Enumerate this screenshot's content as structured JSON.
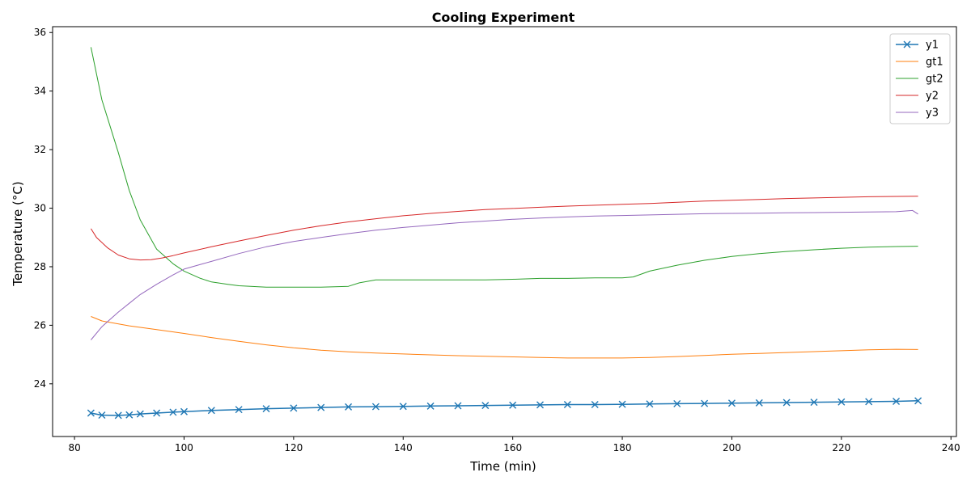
{
  "chart_data": {
    "type": "line",
    "title": "Cooling Experiment",
    "xlabel": "Time (min)",
    "ylabel": "Temperature (°C)",
    "xlim": [
      76,
      241
    ],
    "ylim": [
      22.2,
      36.2
    ],
    "xticks": [
      80,
      100,
      120,
      140,
      160,
      180,
      200,
      220,
      240
    ],
    "yticks": [
      24,
      26,
      28,
      30,
      32,
      34,
      36
    ],
    "grid": false,
    "legend_position": "top-right",
    "series": [
      {
        "name": "y1",
        "color": "#1f77b4",
        "marker": "x",
        "x": [
          83,
          85,
          88,
          90,
          92,
          95,
          98,
          100,
          105,
          110,
          115,
          120,
          125,
          130,
          135,
          140,
          145,
          150,
          155,
          160,
          165,
          170,
          175,
          180,
          185,
          190,
          195,
          200,
          205,
          210,
          215,
          220,
          225,
          230,
          234
        ],
        "y": [
          23.0,
          22.93,
          22.92,
          22.94,
          22.97,
          23.0,
          23.03,
          23.05,
          23.09,
          23.12,
          23.15,
          23.17,
          23.19,
          23.21,
          23.22,
          23.23,
          23.24,
          23.25,
          23.26,
          23.27,
          23.28,
          23.29,
          23.29,
          23.3,
          23.31,
          23.32,
          23.33,
          23.34,
          23.35,
          23.36,
          23.37,
          23.38,
          23.39,
          23.4,
          23.42
        ]
      },
      {
        "name": "gt1",
        "color": "#ff7f0e",
        "x": [
          83,
          85,
          90,
          95,
          100,
          105,
          110,
          115,
          120,
          125,
          130,
          135,
          140,
          145,
          150,
          155,
          160,
          165,
          170,
          175,
          180,
          185,
          190,
          195,
          200,
          205,
          210,
          215,
          220,
          225,
          230,
          234
        ],
        "y": [
          26.3,
          26.15,
          25.98,
          25.85,
          25.72,
          25.58,
          25.45,
          25.33,
          25.23,
          25.15,
          25.09,
          25.05,
          25.02,
          24.99,
          24.96,
          24.94,
          24.92,
          24.9,
          24.88,
          24.88,
          24.88,
          24.9,
          24.93,
          24.97,
          25.01,
          25.04,
          25.07,
          25.1,
          25.13,
          25.16,
          25.18,
          25.17
        ]
      },
      {
        "name": "gt2",
        "color": "#2ca02c",
        "x": [
          83,
          85,
          88,
          90,
          92,
          95,
          98,
          100,
          103,
          105,
          108,
          110,
          115,
          120,
          125,
          130,
          132,
          135,
          140,
          145,
          150,
          155,
          160,
          165,
          170,
          175,
          180,
          182,
          185,
          190,
          195,
          200,
          205,
          210,
          215,
          220,
          225,
          230,
          234
        ],
        "y": [
          35.5,
          33.7,
          31.9,
          30.6,
          29.6,
          28.6,
          28.1,
          27.85,
          27.6,
          27.48,
          27.4,
          27.35,
          27.3,
          27.3,
          27.3,
          27.33,
          27.45,
          27.55,
          27.55,
          27.55,
          27.55,
          27.55,
          27.57,
          27.6,
          27.6,
          27.62,
          27.62,
          27.65,
          27.85,
          28.05,
          28.22,
          28.35,
          28.45,
          28.52,
          28.58,
          28.63,
          28.67,
          28.69,
          28.7
        ]
      },
      {
        "name": "y2",
        "color": "#d62728",
        "x": [
          83,
          84,
          86,
          88,
          90,
          92,
          94,
          96,
          98,
          100,
          105,
          110,
          115,
          120,
          125,
          130,
          135,
          140,
          145,
          150,
          155,
          160,
          165,
          170,
          175,
          180,
          185,
          190,
          195,
          200,
          205,
          210,
          215,
          220,
          225,
          230,
          234
        ],
        "y": [
          29.3,
          29.0,
          28.65,
          28.4,
          28.27,
          28.23,
          28.24,
          28.3,
          28.38,
          28.47,
          28.68,
          28.88,
          29.07,
          29.25,
          29.4,
          29.53,
          29.64,
          29.74,
          29.82,
          29.89,
          29.95,
          29.99,
          30.03,
          30.07,
          30.1,
          30.13,
          30.16,
          30.2,
          30.24,
          30.27,
          30.3,
          30.33,
          30.35,
          30.37,
          30.39,
          30.4,
          30.41
        ]
      },
      {
        "name": "y3",
        "color": "#9467bd",
        "x": [
          83,
          85,
          88,
          90,
          92,
          95,
          98,
          100,
          103,
          105,
          110,
          115,
          120,
          125,
          130,
          135,
          140,
          145,
          150,
          155,
          160,
          165,
          170,
          175,
          180,
          185,
          190,
          195,
          200,
          205,
          210,
          215,
          220,
          225,
          230,
          233,
          234
        ],
        "y": [
          25.5,
          25.95,
          26.45,
          26.75,
          27.05,
          27.4,
          27.72,
          27.92,
          28.08,
          28.18,
          28.45,
          28.68,
          28.86,
          29.0,
          29.13,
          29.25,
          29.34,
          29.42,
          29.5,
          29.56,
          29.62,
          29.66,
          29.7,
          29.73,
          29.75,
          29.77,
          29.79,
          29.81,
          29.82,
          29.83,
          29.84,
          29.85,
          29.86,
          29.87,
          29.88,
          29.92,
          29.8
        ]
      }
    ]
  }
}
